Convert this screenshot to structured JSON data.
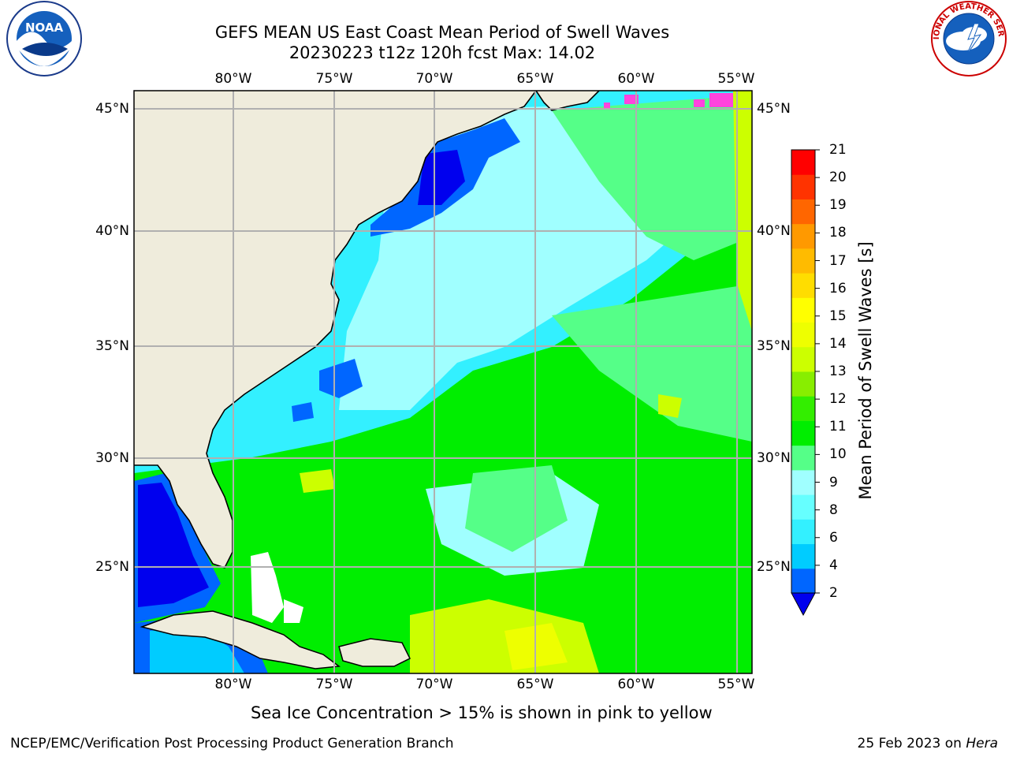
{
  "header": {
    "title_line1": "GEFS MEAN US East Coast Mean Period of Swell Waves",
    "title_line2": "20230223 t12z 120h fcst   Max: 14.02"
  },
  "logos": {
    "left": {
      "name": "noaa-logo",
      "text": "NOAA"
    },
    "right": {
      "name": "nws-logo",
      "text": "NATIONAL WEATHER SERVICE"
    }
  },
  "map": {
    "lon_ticks": [
      "80°W",
      "75°W",
      "70°W",
      "65°W",
      "60°W",
      "55°W"
    ],
    "lat_ticks": [
      "45°N",
      "40°N",
      "35°N",
      "30°N",
      "25°N"
    ],
    "land_color": "#efecdc",
    "coast_color": "#000000",
    "grid_color": "#b0b0b0"
  },
  "colorbar": {
    "label": "Mean Period of Swell Waves [s]",
    "ticks": [
      "21",
      "20",
      "19",
      "18",
      "17",
      "16",
      "15",
      "14",
      "13",
      "12",
      "11",
      "10",
      "9",
      "8",
      "6",
      "4",
      "2"
    ],
    "colors_low_to_high": [
      "#0066ff",
      "#00ccff",
      "#33f0ff",
      "#66ffff",
      "#a0ffff",
      "#55ff88",
      "#00ee00",
      "#33ee00",
      "#88ee00",
      "#ccff00",
      "#eeff00",
      "#ffff00",
      "#ffdd00",
      "#ffbb00",
      "#ff9900",
      "#ff6600",
      "#ff3300",
      "#ff0000"
    ],
    "under_color": "#0000ee"
  },
  "notes": {
    "sea_ice": "Sea Ice Concentration > 15% is shown in pink to yellow"
  },
  "footer": {
    "left": "NCEP/EMC/Verification Post Processing Product Generation Branch",
    "right_date": "25 Feb 2023 on ",
    "right_host": "Hera"
  }
}
